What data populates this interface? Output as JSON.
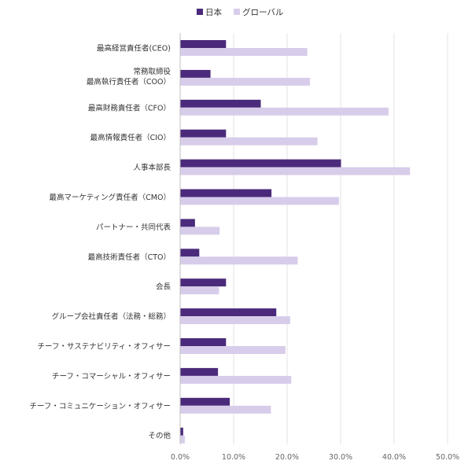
{
  "chart_data": {
    "type": "bar",
    "orientation": "horizontal",
    "title": "",
    "xlabel": "",
    "ylabel": "",
    "xlim": [
      0,
      50
    ],
    "x_ticks": [
      "0.0%",
      "10.0%",
      "20.0%",
      "30.0%",
      "40.0%",
      "50.0%"
    ],
    "grid": "vertical",
    "legend_position": "top-center",
    "categories": [
      [
        "最高経営責任者(CEO)"
      ],
      [
        "常務取締役",
        "最高執行責任者（COO）"
      ],
      [
        "最高財務責任者（CFO）"
      ],
      [
        "最高情報責任者（CIO）"
      ],
      [
        "人事本部長"
      ],
      [
        "最高マーケティング責任者（CMO）"
      ],
      [
        "パートナー・共同代表"
      ],
      [
        "最高技術責任者（CTO）"
      ],
      [
        "会長"
      ],
      [
        "グループ会社責任者（法務・総務）"
      ],
      [
        "チーフ・サステナビリティ・オフィサー"
      ],
      [
        "チーフ・コマーシャル・オフィサー"
      ],
      [
        "チーフ・コミュニケーション・オフィサー"
      ],
      [
        "その他"
      ]
    ],
    "series": [
      {
        "name": "日本",
        "color": "#4b2a7b",
        "values": [
          8.5,
          5.6,
          15.0,
          8.5,
          30.0,
          17.0,
          2.7,
          3.5,
          8.5,
          17.9,
          8.5,
          7.0,
          9.2,
          0.5
        ]
      },
      {
        "name": "グローバル",
        "color": "#d7cdea",
        "values": [
          23.7,
          24.2,
          38.9,
          25.6,
          42.9,
          29.6,
          7.3,
          21.9,
          7.2,
          20.5,
          19.6,
          20.7,
          16.9,
          0.8
        ]
      }
    ]
  }
}
